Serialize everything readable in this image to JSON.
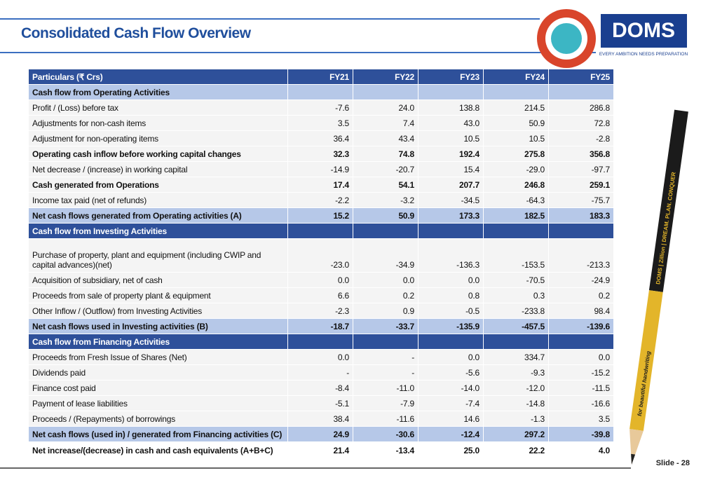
{
  "header": {
    "title": "Consolidated Cash Flow Overview",
    "logo": "DOMS",
    "tagline": "EVERY AMBITION NEEDS PREPARATION"
  },
  "pencil": {
    "brand": "DOMS | Zillion | DREAM. PLAN. CONQUER",
    "slogan": "for beautiful handwriting"
  },
  "table": {
    "columns": [
      "Particulars (₹ Crs)",
      "FY21",
      "FY22",
      "FY23",
      "FY24",
      "FY25"
    ],
    "rows": [
      [
        "Cash flow from Operating Activities"
      ],
      [
        "Profit / (Loss) before tax",
        "-7.6",
        "24.0",
        "138.8",
        "214.5",
        "286.8"
      ],
      [
        "Adjustments for non-cash items",
        "3.5",
        "7.4",
        "43.0",
        "50.9",
        "72.8"
      ],
      [
        "Adjustment for non-operating items",
        "36.4",
        "43.4",
        "10.5",
        "10.5",
        "-2.8"
      ],
      [
        "Operating cash inflow before working capital changes",
        "32.3",
        "74.8",
        "192.4",
        "275.8",
        "356.8"
      ],
      [
        "Net decrease / (increase) in working capital",
        "-14.9",
        "-20.7",
        "15.4",
        "-29.0",
        "-97.7"
      ],
      [
        "Cash generated from Operations",
        "17.4",
        "54.1",
        "207.7",
        "246.8",
        "259.1"
      ],
      [
        "Income tax paid (net of refunds)",
        "-2.2",
        "-3.2",
        "-34.5",
        "-64.3",
        "-75.7"
      ],
      [
        "Net cash flows generated from Operating activities (A)",
        "15.2",
        "50.9",
        "173.3",
        "182.5",
        "183.3"
      ],
      [
        "Cash flow from Investing Activities"
      ],
      [
        "Purchase of property, plant and equipment (including CWIP and capital advances)(net)",
        "-23.0",
        "-34.9",
        "-136.3",
        "-153.5",
        "-213.3"
      ],
      [
        "Acquisition of subsidiary, net of cash",
        "0.0",
        "0.0",
        "0.0",
        "-70.5",
        "-24.9"
      ],
      [
        "Proceeds from sale of property plant & equipment",
        "6.6",
        "0.2",
        "0.8",
        "0.3",
        "0.2"
      ],
      [
        "Other Inflow / (Outflow) from Investing Activities",
        "-2.3",
        "0.9",
        "-0.5",
        "-233.8",
        "98.4"
      ],
      [
        "Net cash flows used in Investing activities (B)",
        "-18.7",
        "-33.7",
        "-135.9",
        "-457.5",
        "-139.6"
      ],
      [
        "Cash flow from Financing Activities"
      ],
      [
        "Proceeds from Fresh Issue of Shares (Net)",
        "0.0",
        "-",
        "0.0",
        "334.7",
        "0.0"
      ],
      [
        "Dividends paid",
        "-",
        "-",
        "-5.6",
        "-9.3",
        "-15.2"
      ],
      [
        "Finance cost paid",
        "-8.4",
        "-11.0",
        "-14.0",
        "-12.0",
        "-11.5"
      ],
      [
        "Payment of lease liabilities",
        "-5.1",
        "-7.9",
        "-7.4",
        "-14.8",
        "-16.6"
      ],
      [
        "Proceeds / (Repayments) of borrowings",
        "38.4",
        "-11.6",
        "14.6",
        "-1.3",
        "3.5"
      ],
      [
        "Net cash flows (used in) / generated from Financing activities (C)",
        "24.9",
        "-30.6",
        "-12.4",
        "297.2",
        "-39.8"
      ],
      [
        "Net increase/(decrease) in cash and cash equivalents (A+B+C)",
        "21.4",
        "-13.4",
        "25.0",
        "22.2",
        "4.0"
      ]
    ]
  },
  "footer": {
    "slide": "Slide - 28"
  }
}
